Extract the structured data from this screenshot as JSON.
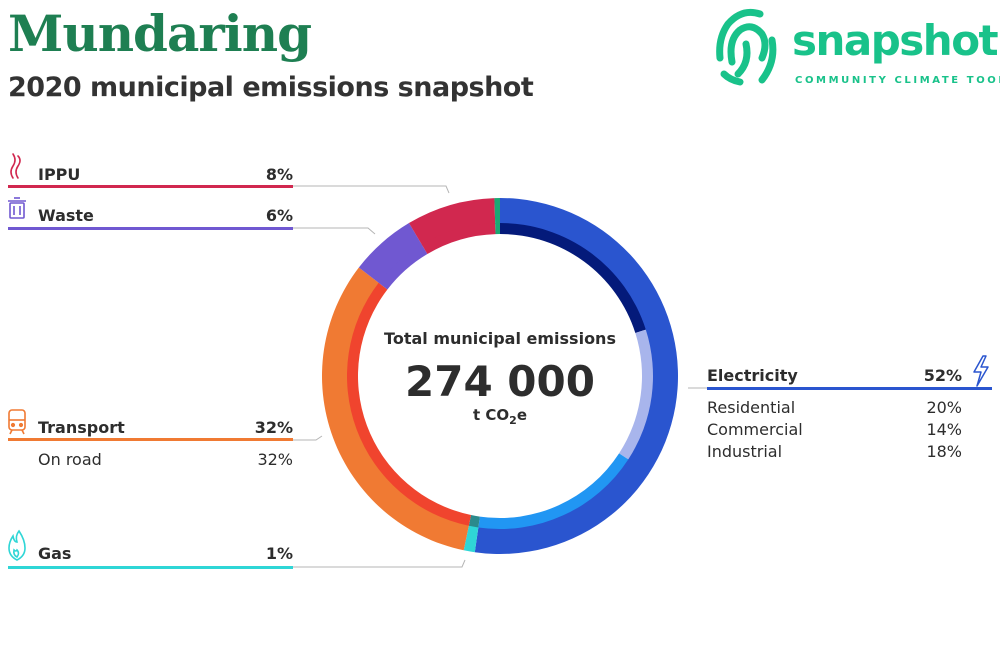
{
  "header": {
    "title": "Mundaring",
    "subtitle": "2020 municipal emissions snapshot"
  },
  "logo": {
    "wordmark": "snapshot",
    "tagline": "COMMUNITY CLIMATE TOOL",
    "color": "#19c28a"
  },
  "chart_data": {
    "type": "pie",
    "center": {
      "label": "Total municipal emissions",
      "value": "274 000",
      "unit_prefix": "t CO",
      "unit_subscript": "2",
      "unit_suffix": "e"
    },
    "sectors": [
      {
        "name": "Electricity",
        "percent": "52%",
        "value": 52,
        "color": "#2a55cf",
        "icon": "lightning-icon",
        "breakdown": [
          {
            "name": "Residential",
            "percent": "20%",
            "value": 20,
            "color": "#041a7a"
          },
          {
            "name": "Commercial",
            "percent": "14%",
            "value": 14,
            "color": "#a8b5ec"
          },
          {
            "name": "Industrial",
            "percent": "18%",
            "value": 18,
            "color": "#2196f3"
          }
        ]
      },
      {
        "name": "Gas",
        "percent": "1%",
        "value": 1,
        "color": "#2fd6d6",
        "icon": "flame-icon",
        "breakdown": [
          {
            "name": "",
            "percent": "",
            "value": 1,
            "color": "#2b8a8c"
          }
        ]
      },
      {
        "name": "Transport",
        "percent": "32%",
        "value": 32,
        "color": "#f07a33",
        "icon": "train-icon",
        "breakdown": [
          {
            "name": "On road",
            "percent": "32%",
            "value": 32,
            "color": "#f0442e"
          }
        ]
      },
      {
        "name": "Waste",
        "percent": "6%",
        "value": 6,
        "color": "#7058d1",
        "icon": "bin-icon",
        "breakdown": [
          {
            "name": "",
            "percent": "",
            "value": 6,
            "color": "#7058d1"
          }
        ]
      },
      {
        "name": "IPPU",
        "percent": "8%",
        "value": 8,
        "color": "#d1284f",
        "icon": "smoke-icon",
        "breakdown": [
          {
            "name": "",
            "percent": "",
            "value": 8,
            "color": "#d1284f"
          }
        ]
      },
      {
        "name": "",
        "percent": "",
        "value": 0.5,
        "color": "#1aa874",
        "icon": "",
        "breakdown": [
          {
            "name": "",
            "percent": "",
            "value": 0.5,
            "color": "#1aa874"
          }
        ]
      }
    ]
  }
}
